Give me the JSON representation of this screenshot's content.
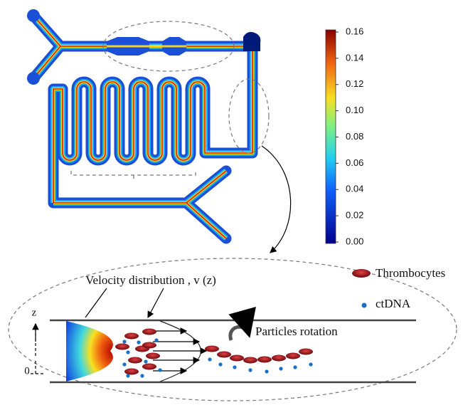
{
  "colorbar": {
    "ticks": [
      "0.16",
      "0.14",
      "0.12",
      "0.10",
      "0.08",
      "0.06",
      "0.04",
      "0.02",
      "0.00"
    ]
  },
  "schematic": {
    "velocity_label": "Velocity distribution , v (z)",
    "axis_z": "z",
    "axis_origin": "0",
    "rotation_label": "Particles rotation"
  },
  "legend": {
    "items": [
      "Thrombocytes",
      "ctDNA"
    ]
  }
}
